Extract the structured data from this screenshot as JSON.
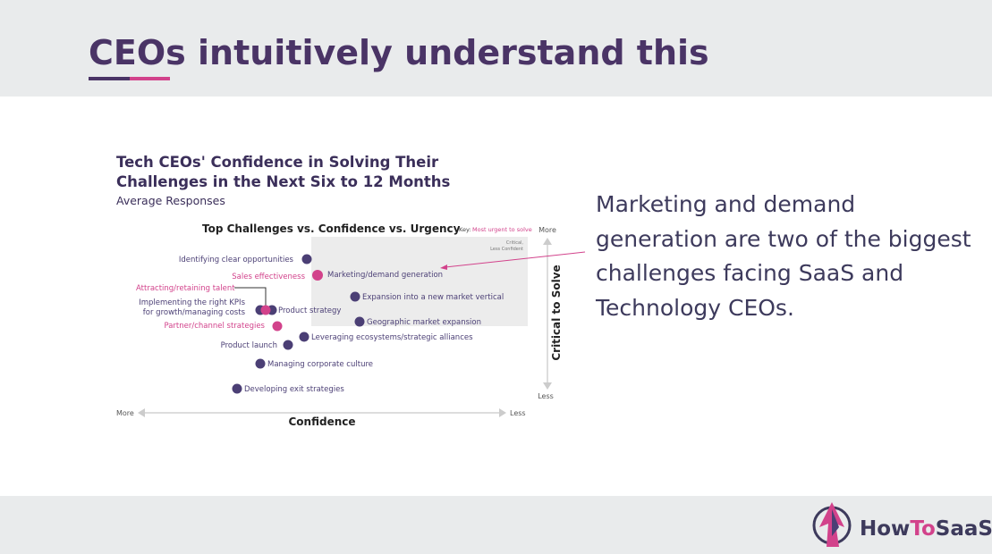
{
  "slide": {
    "title": "CEOs intuitively understand this",
    "chart": {
      "title": [
        "Tech CEOs' Confidence in Solving Their",
        "Challenges in the Next Six to 12 Months"
      ],
      "subtitle": "Average Responses",
      "inner_title": "Top Challenges vs. Confidence vs. Urgency",
      "key_label": "Key:",
      "key_text": "Most urgent to solve",
      "region_label": [
        "Critical,",
        "Less Confident"
      ],
      "y_axis": {
        "label": "Critical to Solve",
        "top": "More",
        "bottom": "Less"
      },
      "x_axis": {
        "label": "Confidence",
        "left": "More",
        "right": "Less"
      },
      "points": [
        {
          "label": [
            "Identifying clear opportunities"
          ],
          "urgent": false
        },
        {
          "label": [
            "Sales effectiveness"
          ],
          "urgent": true
        },
        {
          "label": [
            "Marketing/demand generation"
          ],
          "urgent": true
        },
        {
          "label": [
            "Attracting/retaining talent"
          ],
          "urgent": true
        },
        {
          "label": [
            "Expansion into a new market vertical"
          ],
          "urgent": false
        },
        {
          "label": [
            "Implementing the right KPIs",
            "for growth/managing costs"
          ],
          "urgent": false
        },
        {
          "label": [
            "Product strategy"
          ],
          "urgent": false
        },
        {
          "label": [
            "Geographic market expansion"
          ],
          "urgent": false
        },
        {
          "label": [
            "Partner/channel strategies"
          ],
          "urgent": true
        },
        {
          "label": [
            "Leveraging ecosystems/strategic alliances"
          ],
          "urgent": false
        },
        {
          "label": [
            "Product launch"
          ],
          "urgent": false
        },
        {
          "label": [
            "Managing corporate culture"
          ],
          "urgent": false
        },
        {
          "label": [
            "Developing exit strategies"
          ],
          "urgent": false
        }
      ]
    },
    "body_text": [
      "Marketing and demand",
      "generation are two of the biggest",
      "challenges facing SaaS and",
      "Technology CEOs."
    ],
    "logo": [
      "How",
      "To",
      "SaaS"
    ]
  }
}
